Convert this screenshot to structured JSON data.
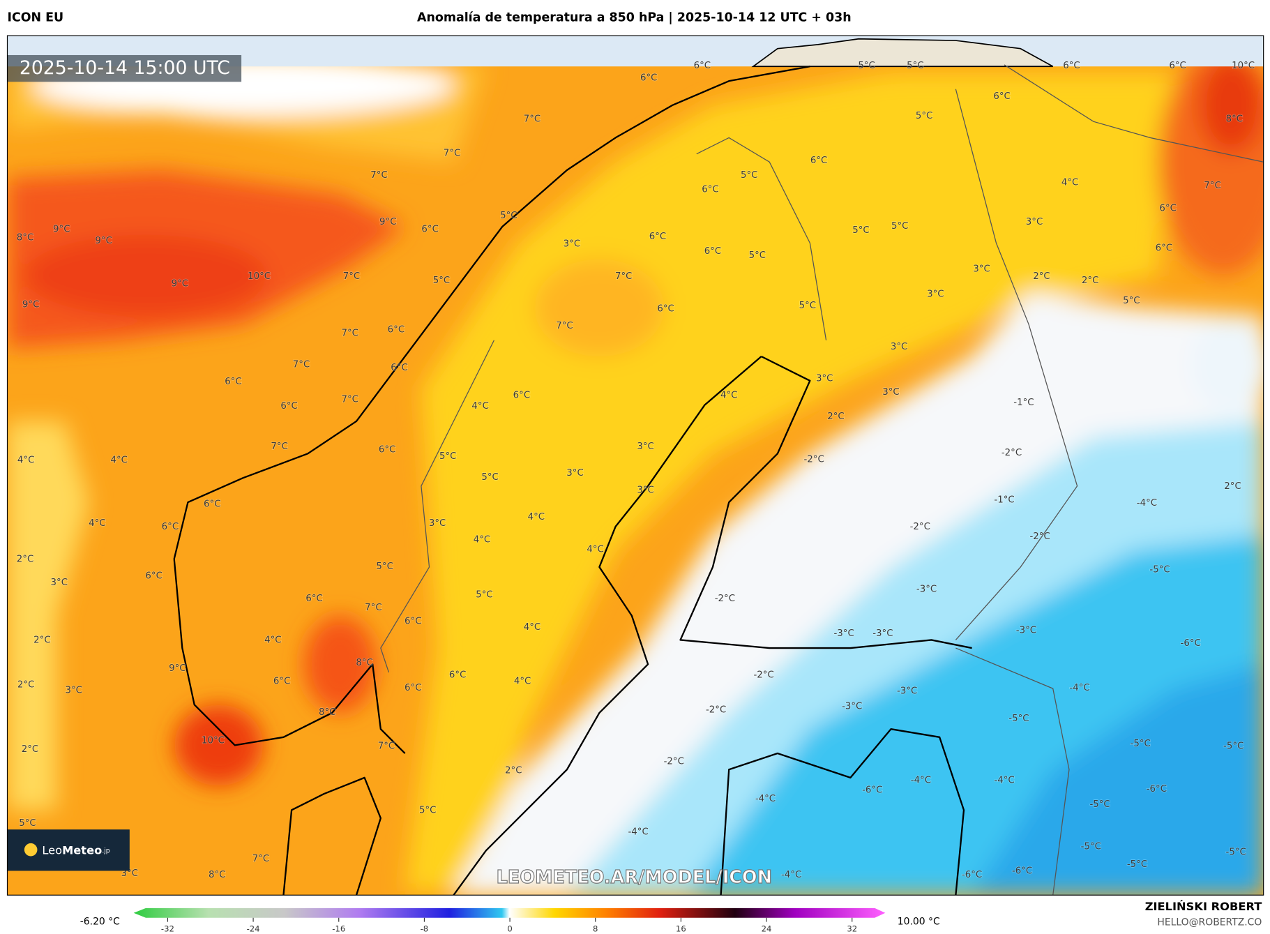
{
  "header": {
    "model": "ICON EU",
    "title": "Anomalía de temperatura a 850 hPa | 2025-10-14 12 UTC + 03h"
  },
  "map": {
    "timestamp": "2025-10-14 15:00 UTC",
    "watermark": "LEOMETEO.AR/MODEL/ICON",
    "logo": [
      "Leo",
      "Meteo",
      ".jp"
    ],
    "labels": [
      "6°C",
      "6°C",
      "5°C",
      "5°C",
      "6°C",
      "6°C",
      "10°C",
      "7°C",
      "5°C",
      "8°C",
      "6°C",
      "7°C",
      "7°C",
      "6°C",
      "5°C",
      "6°C",
      "4°C",
      "7°C",
      "8°C",
      "9°C",
      "9°C",
      "9°C",
      "6°C",
      "5°C",
      "3°C",
      "6°C",
      "6°C",
      "5°C",
      "5°C",
      "5°C",
      "3°C",
      "6°C",
      "6°C",
      "9°C",
      "10°C",
      "7°C",
      "5°C",
      "7°C",
      "6°C",
      "3°C",
      "2°C",
      "2°C",
      "3°C",
      "5°C",
      "5°C",
      "9°C",
      "7°C",
      "6°C",
      "7°C",
      "3°C",
      "7°C",
      "6°C",
      "6°C",
      "3°C",
      "3°C",
      "6°C",
      "7°C",
      "4°C",
      "6°C",
      "4°C",
      "2°C",
      "-1°C",
      "7°C",
      "6°C",
      "3°C",
      "5°C",
      "-2°C",
      "-2°C",
      "4°C",
      "4°C",
      "3°C",
      "5°C",
      "3°C",
      "2°C",
      "6°C",
      "-1°C",
      "-4°C",
      "4°C",
      "6°C",
      "4°C",
      "3°C",
      "-2°C",
      "-2°C",
      "4°C",
      "4°C",
      "2°C",
      "3°C",
      "6°C",
      "5°C",
      "-5°C",
      "6°C",
      "5°C",
      "-2°C",
      "-3°C",
      "7°C",
      "6°C",
      "4°C",
      "-3°C",
      "-3°C",
      "-3°C",
      "2°C",
      "4°C",
      "-6°C",
      "9°C",
      "8°C",
      "6°C",
      "-2°C",
      "2°C",
      "3°C",
      "6°C",
      "4°C",
      "6°C",
      "-3°C",
      "-4°C",
      "8°C",
      "-2°C",
      "-3°C",
      "-5°C",
      "10°C",
      "7°C",
      "-5°C",
      "-5°C",
      "2°C",
      "2°C",
      "-2°C",
      "-4°C",
      "-4°C",
      "-6°C",
      "-6°C",
      "5°C",
      "5°C",
      "-5°C",
      "-4°C",
      "-4°C",
      "7°C",
      "-5°C",
      "-5°C",
      "3°C",
      "8°C",
      "-4°C",
      "-6°C",
      "-6°C",
      "-5°C"
    ]
  },
  "colorbar": {
    "min_label": "-6.20 °C",
    "max_label": "10.00 °C",
    "range": [
      -32,
      32
    ],
    "ticks": [
      -32,
      -24,
      -16,
      -8,
      0,
      8,
      16,
      24,
      32
    ]
  },
  "footer": {
    "author": "ZIELIŃSKI ROBERT",
    "email": "HELLO@ROBERTZ.CO"
  }
}
